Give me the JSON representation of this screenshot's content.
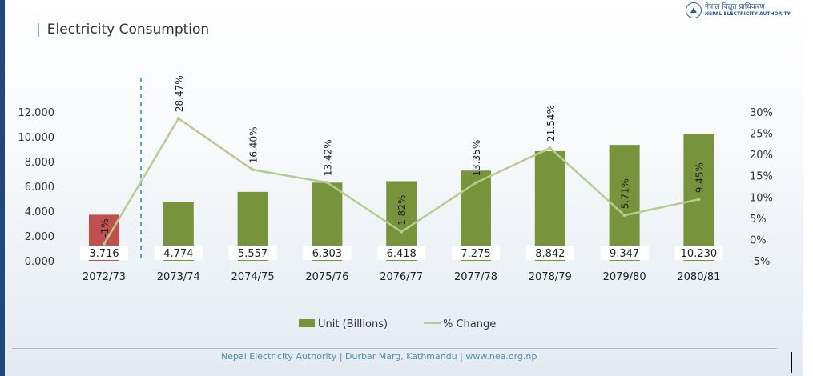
{
  "header": {
    "title": "Electricity Consumption",
    "logo_text_np": "नेपाल विद्युत प्राधिकरण",
    "logo_text_en": "NEPAL ELECTRICITY AUTHORITY"
  },
  "footer": {
    "text": "Nepal Electricity Authority | Durbar Marg, Kathmandu | www.nea.org.np"
  },
  "chart_data": {
    "type": "bar+line",
    "title": "Electricity Consumption",
    "categories": [
      "2072/73",
      "2073/74",
      "2074/75",
      "2075/76",
      "2076/77",
      "2077/78",
      "2078/79",
      "2079/80",
      "2080/81"
    ],
    "series": [
      {
        "name": "Unit (Billions)",
        "type": "bar",
        "axis": "left",
        "values": [
          3.716,
          4.774,
          5.557,
          6.303,
          6.418,
          7.275,
          8.842,
          9.347,
          10.23
        ],
        "value_labels": [
          "3.716",
          "4.774",
          "5.557",
          "6.303",
          "6.418",
          "7.275",
          "8.842",
          "9.347",
          "10.230"
        ],
        "colors": [
          "#c0504d",
          "#77933c",
          "#77933c",
          "#77933c",
          "#77933c",
          "#77933c",
          "#77933c",
          "#77933c",
          "#77933c"
        ]
      },
      {
        "name": "% Change",
        "type": "line",
        "axis": "right",
        "values": [
          -1,
          28.47,
          16.4,
          13.42,
          1.82,
          13.35,
          21.54,
          5.71,
          9.45
        ],
        "value_labels": [
          "-1%",
          "28.47%",
          "16.40%",
          "13.42%",
          "1.82%",
          "13.35%",
          "21.54%",
          "5.71%",
          "9.45%"
        ],
        "color": "#b5cc8e"
      }
    ],
    "left_axis": {
      "ticks": [
        "0.000",
        "2.000",
        "4.000",
        "6.000",
        "8.000",
        "10.000",
        "12.000"
      ],
      "range": [
        0,
        12
      ]
    },
    "right_axis": {
      "ticks": [
        "-5%",
        "0%",
        "5%",
        "10%",
        "15%",
        "20%",
        "25%",
        "30%"
      ],
      "range": [
        -5,
        30
      ]
    },
    "legend": {
      "position": "bottom",
      "items": [
        "Unit (Billions)",
        "% Change"
      ]
    },
    "divider_after": "2072/73"
  }
}
